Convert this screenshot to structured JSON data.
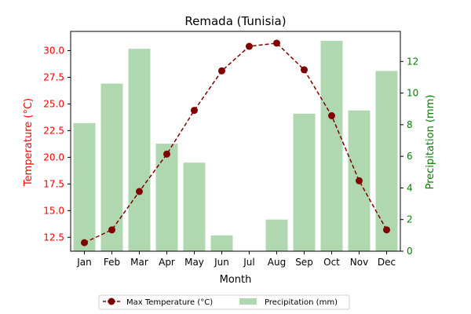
{
  "chart_data": {
    "type": "bar+line",
    "title": "Remada (Tunisia)",
    "xlabel": "Month",
    "ylabel_left": "Temperature (°C)",
    "ylabel_right": "Precipitation (mm)",
    "categories": [
      "Jan",
      "Feb",
      "Mar",
      "Apr",
      "May",
      "Jun",
      "Jul",
      "Aug",
      "Sep",
      "Oct",
      "Nov",
      "Dec"
    ],
    "y_left_lim": [
      11.2,
      31.8
    ],
    "y_right_lim": [
      0,
      13.9
    ],
    "y_left_ticks": [
      "12.5",
      "15.0",
      "17.5",
      "20.0",
      "22.5",
      "25.0",
      "27.5",
      "30.0"
    ],
    "y_right_ticks": [
      "0",
      "2",
      "4",
      "6",
      "8",
      "10",
      "12"
    ],
    "series": [
      {
        "name": "Max Temperature (°C)",
        "kind": "line",
        "axis": "left",
        "color": "#800000",
        "values": [
          12.0,
          13.2,
          16.8,
          20.3,
          24.4,
          28.1,
          30.4,
          30.7,
          28.2,
          23.9,
          17.8,
          13.2
        ]
      },
      {
        "name": "Precipitation (mm)",
        "kind": "bar",
        "axis": "right",
        "color": "#b0d8b0",
        "values": [
          8.1,
          10.6,
          12.8,
          6.8,
          5.6,
          1.0,
          0,
          2.0,
          8.7,
          13.3,
          8.9,
          11.4
        ]
      }
    ],
    "left_axis_color": "#ff0000",
    "right_axis_color": "#008000",
    "legend_position": "bottom-center"
  }
}
